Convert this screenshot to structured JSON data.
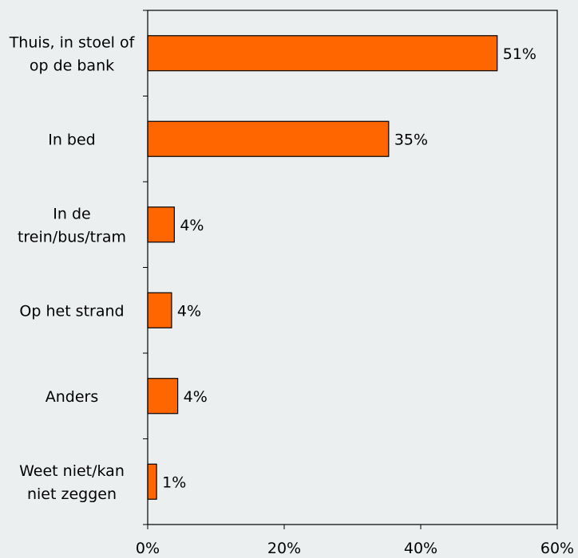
{
  "chart_data": {
    "type": "bar",
    "orientation": "horizontal",
    "categories": [
      [
        "Thuis, in stoel of",
        "op de bank"
      ],
      [
        "In bed"
      ],
      [
        "In de",
        "trein/bus/tram"
      ],
      [
        "Op het strand"
      ],
      [
        "Anders"
      ],
      [
        "Weet niet/kan",
        "niet zeggen"
      ]
    ],
    "values": [
      51.2,
      35.3,
      3.9,
      3.5,
      4.4,
      1.3
    ],
    "value_labels": [
      "51%",
      "35%",
      "4%",
      "4%",
      "4%",
      "1%"
    ],
    "xlim": [
      0,
      60
    ],
    "x_ticks": [
      0,
      20,
      40,
      60
    ],
    "x_tick_labels": [
      "0%",
      "20%",
      "40%",
      "60%"
    ],
    "bar_color": "#ff6600",
    "bar_edge_color": "#000000",
    "background_color": "#eceff0",
    "grid": false,
    "title": "",
    "xlabel": "",
    "ylabel": ""
  }
}
